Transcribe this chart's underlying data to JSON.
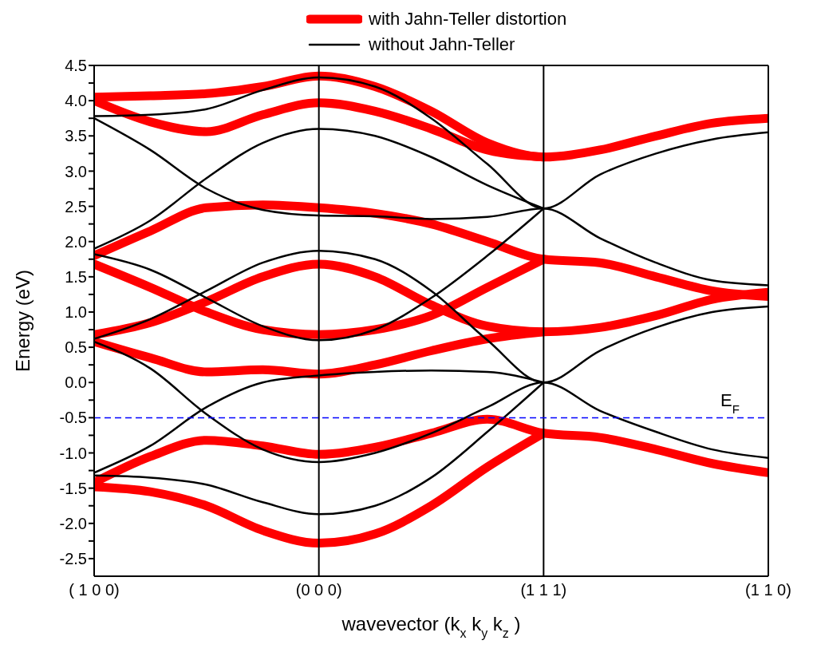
{
  "chart_data": {
    "type": "line",
    "xlabel": "wavevector (k$_{x}$ k$_{y}$ k$_{z}$)",
    "ylabel": "Energy (eV)",
    "categories": [
      "( 1 0 0)",
      null,
      null,
      null,
      "(0 0 0)",
      null,
      null,
      null,
      "(1 1 1)",
      null,
      null,
      null,
      "(1 1 0)"
    ],
    "ylim": [
      -2.75,
      4.5
    ],
    "yticks": [
      {
        "value": -2.5,
        "label": "-2.5"
      },
      {
        "value": -2.25,
        "label": null
      },
      {
        "value": -2,
        "label": "-2.0"
      },
      {
        "value": -1.75,
        "label": null
      },
      {
        "value": -1.5,
        "label": "-1.5"
      },
      {
        "value": -1.25,
        "label": null
      },
      {
        "value": -1,
        "label": "-1.0"
      },
      {
        "value": -0.75,
        "label": null
      },
      {
        "value": -0.5,
        "label": "-0.5"
      },
      {
        "value": -0.25,
        "label": null
      },
      {
        "value": 0,
        "label": "0.0"
      },
      {
        "value": 0.25,
        "label": null
      },
      {
        "value": 0.5,
        "label": "0.5"
      },
      {
        "value": 0.75,
        "label": null
      },
      {
        "value": 1,
        "label": "1.0"
      },
      {
        "value": 1.25,
        "label": null
      },
      {
        "value": 1.5,
        "label": "1.5"
      },
      {
        "value": 1.75,
        "label": null
      },
      {
        "value": 2,
        "label": "2.0"
      },
      {
        "value": 2.25,
        "label": null
      },
      {
        "value": 2.5,
        "label": "2.5"
      },
      {
        "value": 2.75,
        "label": null
      },
      {
        "value": 3,
        "label": "3.0"
      },
      {
        "value": 3.25,
        "label": null
      },
      {
        "value": 3.5,
        "label": "3.5"
      },
      {
        "value": 3.75,
        "label": null
      },
      {
        "value": 4,
        "label": "4.0"
      },
      {
        "value": 4.25,
        "label": null
      },
      {
        "value": 4.5,
        "label": "4.5"
      }
    ],
    "grid": false,
    "legend": "top",
    "line_style": "solid",
    "ref_lines": [
      {
        "axis": "x",
        "value": "(0 0 0)",
        "label": null,
        "color": "#000000",
        "line_style": "solid"
      },
      {
        "axis": "x",
        "value": "(1 1 1)",
        "label": null,
        "color": "#000000",
        "line_style": "solid"
      },
      {
        "axis": "y",
        "value": -0.5,
        "label": "E$_{F}$",
        "color": "#0000ff",
        "line_style": "dashed"
      }
    ],
    "series": [
      {
        "name": "with Jahn-Teller distortion",
        "color": "#ff0000",
        "values": [
          4.05,
          4.07,
          4.1,
          4.2,
          4.35,
          4.2,
          3.85,
          3.4,
          3.2,
          3.3,
          3.5,
          3.68,
          3.75
        ]
      },
      {
        "color": "#ff0000",
        "values": [
          4.0,
          3.7,
          3.56,
          3.8,
          3.97,
          3.85,
          3.6,
          3.3,
          3.2,
          null,
          null,
          null,
          null
        ]
      },
      {
        "color": "#ff0000",
        "values": [
          1.8,
          2.15,
          2.48,
          2.52,
          2.48,
          2.4,
          2.25,
          2.0,
          1.75,
          1.7,
          1.5,
          1.3,
          1.22
        ]
      },
      {
        "color": "#ff0000",
        "values": [
          0.68,
          0.85,
          1.15,
          1.5,
          1.68,
          1.5,
          1.1,
          0.8,
          0.72,
          0.78,
          0.95,
          1.18,
          1.28
        ]
      },
      {
        "color": "#ff0000",
        "values": [
          1.68,
          1.35,
          1.0,
          0.75,
          0.68,
          0.75,
          0.95,
          1.35,
          1.75,
          null,
          null,
          null,
          null
        ]
      },
      {
        "color": "#ff0000",
        "values": [
          0.58,
          0.35,
          0.15,
          0.18,
          0.12,
          0.25,
          0.45,
          0.62,
          0.72,
          null,
          null,
          null,
          null
        ]
      },
      {
        "color": "#ff0000",
        "values": [
          -1.42,
          -1.05,
          -0.82,
          -0.9,
          -1.02,
          -0.92,
          -0.72,
          -0.52,
          -0.72,
          -0.78,
          -0.95,
          -1.15,
          -1.28
        ]
      },
      {
        "color": "#ff0000",
        "values": [
          -1.48,
          -1.55,
          -1.75,
          -2.1,
          -2.28,
          -2.15,
          -1.75,
          -1.2,
          -0.72,
          null,
          null,
          null,
          null
        ]
      },
      {
        "name": "without Jahn-Teller",
        "color": "#000000",
        "values": [
          3.78,
          3.8,
          3.88,
          4.15,
          4.33,
          4.2,
          3.75,
          3.1,
          2.47,
          2.95,
          3.25,
          3.45,
          3.55
        ]
      },
      {
        "color": "#000000",
        "values": [
          3.75,
          3.3,
          2.75,
          2.45,
          2.37,
          2.36,
          2.32,
          2.35,
          2.47,
          2.05,
          1.7,
          1.45,
          1.38
        ]
      },
      {
        "color": "#000000",
        "values": [
          1.9,
          2.3,
          2.9,
          3.4,
          3.6,
          3.5,
          3.2,
          2.8,
          2.47,
          null,
          null,
          null,
          null
        ]
      },
      {
        "color": "#000000",
        "values": [
          1.82,
          1.6,
          1.2,
          0.8,
          0.6,
          0.75,
          1.2,
          1.8,
          2.47,
          null,
          null,
          null,
          null
        ]
      },
      {
        "color": "#000000",
        "values": [
          0.62,
          0.9,
          1.3,
          1.7,
          1.87,
          1.75,
          1.3,
          0.6,
          0.0,
          0.45,
          0.78,
          1.0,
          1.08
        ]
      },
      {
        "color": "#000000",
        "values": [
          0.58,
          0.2,
          -0.45,
          -0.95,
          -1.13,
          -1.0,
          -0.72,
          -0.35,
          0.0,
          -0.4,
          -0.7,
          -0.95,
          -1.07
        ]
      },
      {
        "color": "#000000",
        "values": [
          -1.28,
          -0.9,
          -0.35,
          0.0,
          0.1,
          0.15,
          0.17,
          0.15,
          0.0,
          null,
          null,
          null,
          null
        ]
      },
      {
        "color": "#000000",
        "values": [
          -1.32,
          -1.35,
          -1.45,
          -1.7,
          -1.87,
          -1.75,
          -1.35,
          -0.7,
          0.0,
          null,
          null,
          null,
          null
        ]
      }
    ]
  }
}
